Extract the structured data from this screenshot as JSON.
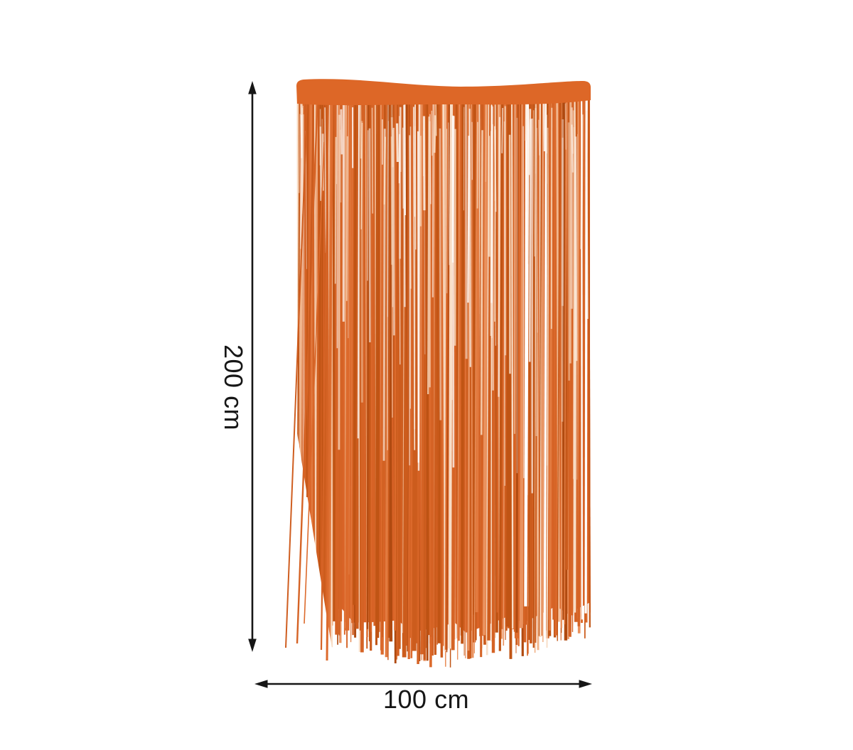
{
  "figure": {
    "height_label": "200 cm",
    "width_label": "100 cm"
  },
  "colors": {
    "background": "#ffffff",
    "dimension": "#161616",
    "curtain_band": "#dd6727",
    "curtain_base": "#d96327",
    "curtain_palette": [
      "#b04a10",
      "#c05414",
      "#cc5c1d",
      "#d56325",
      "#dc6a2c",
      "#e27a3f",
      "#ea925e",
      "#f1b58c",
      "#f8ddc6",
      "#ffffff"
    ],
    "curtain_highlights": [
      "#ffffff",
      "#fdf1e7",
      "#f9dcc2"
    ]
  },
  "curtain": {
    "strand_count": 240,
    "highlight_count": 130,
    "seed": 20240917
  }
}
